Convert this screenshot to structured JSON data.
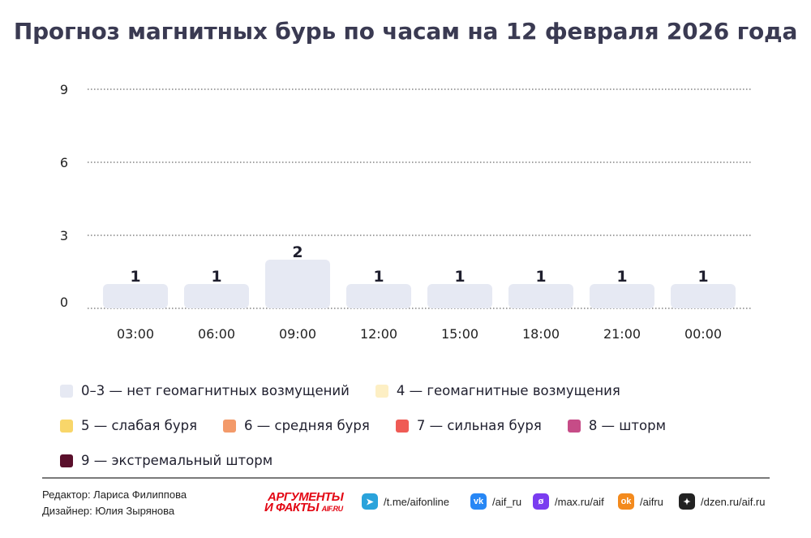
{
  "title": "Прогноз магнитных бурь по часам на 12 февраля 2026 года",
  "chart_data": {
    "type": "bar",
    "categories": [
      "03:00",
      "06:00",
      "09:00",
      "12:00",
      "15:00",
      "18:00",
      "21:00",
      "00:00"
    ],
    "values": [
      1,
      1,
      2,
      1,
      1,
      1,
      1,
      1
    ],
    "yticks": [
      0,
      3,
      6,
      9
    ],
    "ylim": [
      0,
      9
    ],
    "grid": true,
    "bar_color": "#e6e9f3",
    "label_color": "#1f1f2e"
  },
  "legend": [
    [
      {
        "label": "0–3 — нет геомагнитных возмущений",
        "color": "#e6e9f3"
      },
      {
        "label": "4 — геомагнитные возмущения",
        "color": "#fdefc4"
      }
    ],
    [
      {
        "label": "5 — слабая буря",
        "color": "#f8d66a"
      },
      {
        "label": "6 — средняя буря",
        "color": "#f39a6a"
      },
      {
        "label": "7 — сильная буря",
        "color": "#ef5b55"
      },
      {
        "label": "8 — шторм",
        "color": "#c64c87"
      }
    ],
    [
      {
        "label": "9 — экстремальный шторм",
        "color": "#5a0f2b"
      }
    ]
  ],
  "credits": {
    "editor": "Редактор: Лариса Филиппова",
    "designer": "Дизайнер: Юлия Зырянова"
  },
  "brand": {
    "top": "АРГУМЕНТЫ",
    "bottom": "И ФАКТЫ",
    "domain": "AIF.RU"
  },
  "social": [
    {
      "text": "/t.me/aifonline",
      "icon": "telegram-icon",
      "color": "#2aa3db"
    },
    {
      "text": "/aif_ru",
      "icon": "vk-icon",
      "color": "#2787f5"
    },
    {
      "text": "/max.ru/aif",
      "icon": "max-icon",
      "color": "#7a3cf0"
    },
    {
      "text": "/aifru",
      "icon": "odnoklassniki-icon",
      "color": "#f38a1d"
    },
    {
      "text": "/dzen.ru/aif.ru",
      "icon": "dzen-icon",
      "color": "#222222"
    }
  ]
}
